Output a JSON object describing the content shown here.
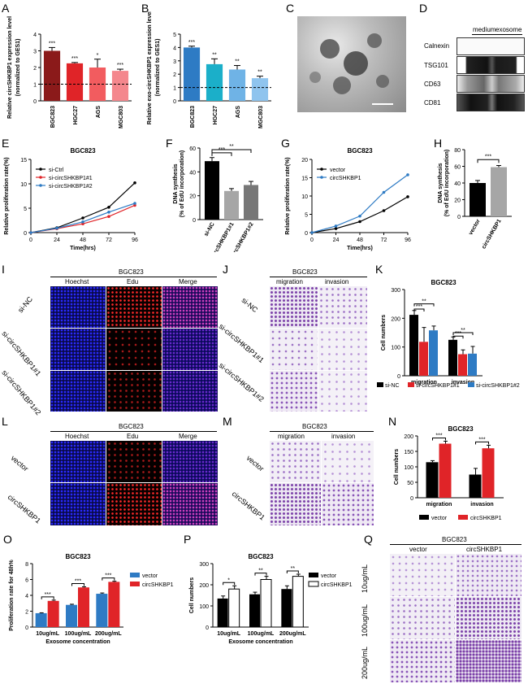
{
  "panels": [
    "A",
    "B",
    "C",
    "D",
    "E",
    "F",
    "G",
    "H",
    "I",
    "J",
    "K",
    "L",
    "M",
    "N",
    "O",
    "P",
    "Q"
  ],
  "colors": {
    "dark_red": "#8B1A1A",
    "red": "#E02428",
    "blue": "#2E7BC4",
    "teal": "#1BAFC9",
    "pink": "#F4878D",
    "light_blue": "#6FB3E6",
    "gray": "#9A9A9A",
    "black": "#000000",
    "purple": "#7B3FA8"
  },
  "A": {
    "ylabel1": "Relative circSHKBP1 expression level",
    "ylabel2": "(normalized to GES1)",
    "stars": [
      "***",
      "***",
      "*",
      "***"
    ]
  },
  "B": {
    "ylabel1": "Relative exo-circSHKBP1 expression level",
    "ylabel2": "(normalized to GES1)",
    "stars": [
      "***",
      "**",
      "**",
      "**"
    ]
  },
  "D": {
    "header_left": "medium",
    "header_right": "exosome",
    "rows": [
      "Calnexin",
      "TSG101",
      "CD63",
      "CD81"
    ]
  },
  "E": {
    "title": "BGC823",
    "xlabel": "Time(hrs)",
    "ylabel": "Relative proliferation rate(%)",
    "legend": [
      "si-Ctrl",
      "si-circSHKBP1#1",
      "si-circSHKBP1#2"
    ]
  },
  "F": {
    "ylabel1": "DNA synthesis",
    "ylabel2": "(% of EdU incorporation)",
    "stars_top": "**",
    "stars_inner": "***",
    "xticks": [
      "si-NC",
      "si-circSHKBP1#1",
      "si-circSHKBP1#2"
    ]
  },
  "G": {
    "title": "BGC823",
    "xlabel": "Time(hrs)",
    "ylabel": "Relative proliferation rate(%)",
    "legend": [
      "vector",
      "circSHKBP1"
    ]
  },
  "H": {
    "ylabel1": "DNA synthesis",
    "ylabel2": "(% of EdU incorporation)",
    "stars": "***",
    "xticks": [
      "vector",
      "circSHKBP1"
    ]
  },
  "I": {
    "title": "BGC823",
    "cols": [
      "Hoechst",
      "Edu",
      "Merge"
    ],
    "rows": [
      "si-NC",
      "si-circSHKBP1#1",
      "si-circSHKBP1#2"
    ]
  },
  "J": {
    "title": "BGC823",
    "cols": [
      "migration",
      "invasion"
    ],
    "rows": [
      "si-NC",
      "si-circSHKBP1#1",
      "si-circSHKBP1#2"
    ]
  },
  "K": {
    "title": "BGC823",
    "ylabel": "Cell numbers",
    "groups": [
      "migration",
      "invasion"
    ],
    "legend": [
      "si-NC",
      "si-circSHKBP1#1",
      "si-circSHKBP1#2"
    ]
  },
  "L": {
    "title": "BGC823",
    "cols": [
      "Hoechst",
      "Edu",
      "Merge"
    ],
    "rows": [
      "vector",
      "circSHKBP1"
    ]
  },
  "M": {
    "title": "BGC823",
    "cols": [
      "migration",
      "invasion"
    ],
    "rows": [
      "vector",
      "circSHKBP1"
    ]
  },
  "N": {
    "title": "BGC823",
    "ylabel": "Cell numbers",
    "groups": [
      "migration",
      "invasion"
    ],
    "legend": [
      "vector",
      "circSHKBP1"
    ],
    "stars": [
      "***",
      "***"
    ]
  },
  "O": {
    "title": "BGC823",
    "ylabel": "Proliferation rate for 48h%",
    "xlabel": "Exosome concentration",
    "groups": [
      "10ug/mL",
      "100ug/mL",
      "200ug/mL"
    ],
    "legend": [
      "vector",
      "circSHKBP1"
    ],
    "stars": [
      "***",
      "***",
      "***"
    ]
  },
  "P": {
    "title": "BGC823",
    "ylabel": "Cell numbers",
    "xlabel": "Exosome concentration",
    "groups": [
      "10ug/mL",
      "100ug/mL",
      "200ug/mL"
    ],
    "legend": [
      "vector",
      "circSHKBP1"
    ],
    "stars": [
      "*",
      "**",
      "**"
    ]
  },
  "Q": {
    "title": "BGC823",
    "cols": [
      "vector",
      "circSHKBP1"
    ],
    "rows": [
      "10ug/mL",
      "100ug/mL",
      "200ug/mL"
    ]
  },
  "chart_data": [
    {
      "panel": "A",
      "type": "bar",
      "categories": [
        "BGC823",
        "HGC27",
        "AGS",
        "MGC803"
      ],
      "values": [
        3.0,
        2.25,
        2.0,
        1.8
      ],
      "errors": [
        0.2,
        0.05,
        0.5,
        0.1
      ],
      "ylim": [
        0,
        4
      ],
      "yticks": [
        0,
        1,
        2,
        3,
        4
      ],
      "reference_line": 1,
      "colors": [
        "#8B1A1A",
        "#E02428",
        "#F25C5F",
        "#F4878D"
      ]
    },
    {
      "panel": "B",
      "type": "bar",
      "categories": [
        "BGC823",
        "HGC27",
        "AGS",
        "MGC803"
      ],
      "values": [
        4.0,
        2.75,
        2.35,
        1.7
      ],
      "errors": [
        0.1,
        0.4,
        0.3,
        0.15
      ],
      "ylim": [
        0,
        5
      ],
      "yticks": [
        0,
        1,
        2,
        3,
        4,
        5
      ],
      "reference_line": 1,
      "colors": [
        "#2E7BC4",
        "#1BAFC9",
        "#6FB3E6",
        "#8FC4EE"
      ]
    },
    {
      "panel": "E",
      "type": "line",
      "x": [
        0,
        24,
        48,
        72,
        96
      ],
      "xticks": [
        0,
        24,
        48,
        72,
        96
      ],
      "ylim": [
        0,
        15
      ],
      "yticks": [
        0,
        5,
        10,
        15
      ],
      "series": [
        {
          "name": "si-Ctrl",
          "values": [
            0,
            1.0,
            3.0,
            5.2,
            10.2
          ],
          "color": "#000000"
        },
        {
          "name": "si-circSHKBP1#1",
          "values": [
            0,
            0.8,
            1.8,
            3.3,
            5.6
          ],
          "color": "#E02428"
        },
        {
          "name": "si-circSHKBP1#2",
          "values": [
            0,
            0.9,
            2.2,
            4.2,
            6.0
          ],
          "color": "#2E7BC4"
        }
      ]
    },
    {
      "panel": "F",
      "type": "bar",
      "categories": [
        "si-NC",
        "si-circSHKBP1#1",
        "si-circSHKBP1#2"
      ],
      "values": [
        49,
        24,
        29
      ],
      "errors": [
        3,
        2,
        3
      ],
      "ylim": [
        0,
        60
      ],
      "yticks": [
        0,
        20,
        40,
        60
      ],
      "colors": [
        "#000000",
        "#A6A6A6",
        "#777777"
      ]
    },
    {
      "panel": "G",
      "type": "line",
      "x": [
        0,
        24,
        48,
        72,
        96
      ],
      "xticks": [
        0,
        24,
        48,
        72,
        96
      ],
      "ylim": [
        0,
        20
      ],
      "yticks": [
        0,
        5,
        10,
        15,
        20
      ],
      "series": [
        {
          "name": "vector",
          "values": [
            0,
            1.1,
            3.0,
            6.0,
            9.8
          ],
          "color": "#000000"
        },
        {
          "name": "circSHKBP1",
          "values": [
            0,
            1.8,
            4.5,
            11.0,
            15.8
          ],
          "color": "#2E7BC4"
        }
      ]
    },
    {
      "panel": "H",
      "type": "bar",
      "categories": [
        "vector",
        "circSHKBP1"
      ],
      "values": [
        40,
        59
      ],
      "errors": [
        3,
        2
      ],
      "ylim": [
        0,
        80
      ],
      "yticks": [
        0,
        20,
        40,
        60,
        80
      ],
      "colors": [
        "#000000",
        "#A6A6A6"
      ]
    },
    {
      "panel": "K",
      "type": "bar",
      "groups": [
        "migration",
        "invasion"
      ],
      "series": [
        {
          "name": "si-NC",
          "values": [
            212,
            125
          ],
          "errors": [
            15,
            10
          ],
          "color": "#000000"
        },
        {
          "name": "si-circSHKBP1#1",
          "values": [
            118,
            75
          ],
          "errors": [
            50,
            15
          ],
          "color": "#E02428"
        },
        {
          "name": "si-circSHKBP1#2",
          "values": [
            158,
            77
          ],
          "errors": [
            15,
            25
          ],
          "color": "#2E7BC4"
        }
      ],
      "ylim": [
        0,
        300
      ],
      "yticks": [
        0,
        100,
        200,
        300
      ]
    },
    {
      "panel": "N",
      "type": "bar",
      "groups": [
        "migration",
        "invasion"
      ],
      "series": [
        {
          "name": "vector",
          "values": [
            115,
            75
          ],
          "errors": [
            5,
            20
          ],
          "color": "#000000"
        },
        {
          "name": "circSHKBP1",
          "values": [
            175,
            160
          ],
          "errors": [
            8,
            10
          ],
          "color": "#E02428"
        }
      ],
      "ylim": [
        0,
        200
      ],
      "yticks": [
        0,
        50,
        100,
        150,
        200
      ]
    },
    {
      "panel": "O",
      "type": "bar",
      "groups": [
        "10ug/mL",
        "100ug/mL",
        "200ug/mL"
      ],
      "series": [
        {
          "name": "vector",
          "values": [
            1.75,
            2.8,
            4.2
          ],
          "errors": [
            0.05,
            0.08,
            0.1
          ],
          "color": "#2E7BC4"
        },
        {
          "name": "circSHKBP1",
          "values": [
            3.3,
            5.0,
            5.7
          ],
          "errors": [
            0.1,
            0.08,
            0.08
          ],
          "color": "#E02428"
        }
      ],
      "ylim": [
        0,
        8
      ],
      "yticks": [
        0,
        2,
        4,
        6,
        8
      ]
    },
    {
      "panel": "P",
      "type": "bar",
      "groups": [
        "10ug/mL",
        "100ug/mL",
        "200ug/mL"
      ],
      "series": [
        {
          "name": "vector",
          "values": [
            135,
            155,
            180
          ],
          "errors": [
            12,
            10,
            15
          ],
          "color": "#000000"
        },
        {
          "name": "circSHKBP1",
          "values": [
            180,
            225,
            240
          ],
          "errors": [
            15,
            15,
            10
          ],
          "color": "#FFFFFF"
        }
      ],
      "ylim": [
        0,
        300
      ],
      "yticks": [
        0,
        100,
        200,
        300
      ]
    }
  ]
}
